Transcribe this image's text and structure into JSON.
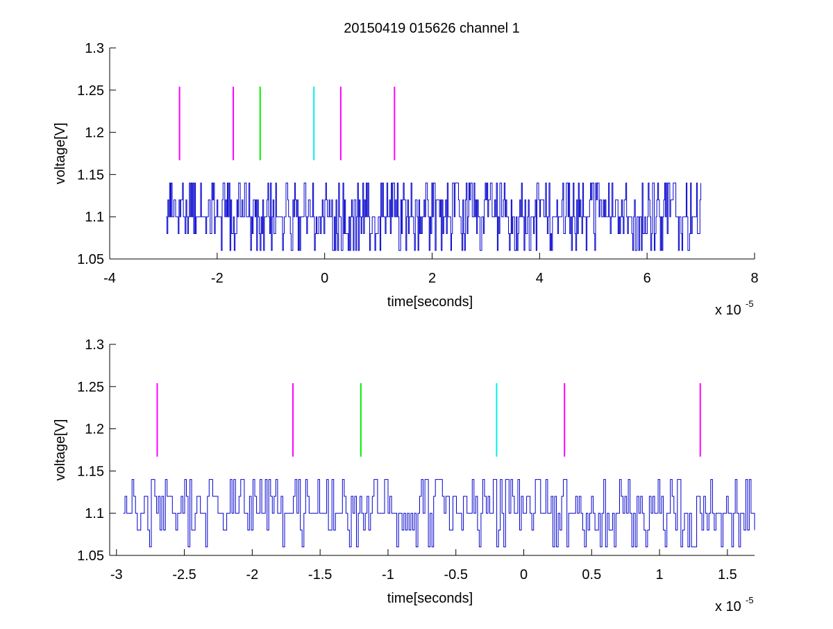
{
  "figure": {
    "title": "20150419 015626 channel 1"
  },
  "colors": {
    "signal": "#0000cc",
    "magenta": "#ff00ff",
    "green": "#00ee00",
    "cyan": "#00eeee",
    "axes": "#000000",
    "background": "#ffffff"
  },
  "chart_data": [
    {
      "type": "line",
      "title": "20150419 015626 channel 1",
      "xlabel": "time[seconds]",
      "ylabel": "voltage[V]",
      "x_exponent_label": "x 10",
      "x_exponent_power": "-5",
      "xlim": [
        -4,
        8
      ],
      "ylim": [
        1.05,
        1.3
      ],
      "xticks": [
        -4,
        -2,
        0,
        2,
        4,
        6,
        8
      ],
      "xtick_labels": [
        "-4",
        "-2",
        "0",
        "2",
        "4",
        "6",
        "8"
      ],
      "yticks": [
        1.05,
        1.1,
        1.15,
        1.2,
        1.25,
        1.3
      ],
      "ytick_labels": [
        "1.05",
        "1.1",
        "1.15",
        "1.2",
        "1.25",
        "1.3"
      ],
      "grid": false,
      "signal": {
        "x_range": [
          -2.95,
          7.0
        ],
        "levels": [
          1.06,
          1.08,
          1.1,
          1.12,
          1.14
        ],
        "baseline": 1.1,
        "note_color": "signal"
      },
      "markers": [
        {
          "x": -2.7,
          "y0": 1.167,
          "y1": 1.254,
          "color": "magenta"
        },
        {
          "x": -1.7,
          "y0": 1.167,
          "y1": 1.254,
          "color": "magenta"
        },
        {
          "x": -1.2,
          "y0": 1.167,
          "y1": 1.254,
          "color": "green"
        },
        {
          "x": -0.2,
          "y0": 1.167,
          "y1": 1.254,
          "color": "cyan"
        },
        {
          "x": 0.3,
          "y0": 1.167,
          "y1": 1.254,
          "color": "magenta"
        },
        {
          "x": 1.3,
          "y0": 1.167,
          "y1": 1.254,
          "color": "magenta"
        }
      ]
    },
    {
      "type": "line",
      "title": "",
      "xlabel": "time[seconds]",
      "ylabel": "voltage[V]",
      "x_exponent_label": "x 10",
      "x_exponent_power": "-5",
      "xlim": [
        -3.05,
        1.7
      ],
      "ylim": [
        1.05,
        1.3
      ],
      "xticks": [
        -3,
        -2.5,
        -2,
        -1.5,
        -1,
        -0.5,
        0,
        0.5,
        1,
        1.5
      ],
      "xtick_labels": [
        "-3",
        "-2.5",
        "-2",
        "-1.5",
        "-1",
        "-0.5",
        "0",
        "0.5",
        "1",
        "1.5"
      ],
      "yticks": [
        1.05,
        1.1,
        1.15,
        1.2,
        1.25,
        1.3
      ],
      "ytick_labels": [
        "1.05",
        "1.1",
        "1.15",
        "1.2",
        "1.25",
        "1.3"
      ],
      "grid": false,
      "signal": {
        "x_range": [
          -2.95,
          1.7
        ],
        "levels": [
          1.06,
          1.08,
          1.1,
          1.12,
          1.14
        ],
        "baseline": 1.1,
        "note_color": "signal"
      },
      "markers": [
        {
          "x": -2.7,
          "y0": 1.167,
          "y1": 1.254,
          "color": "magenta"
        },
        {
          "x": -1.7,
          "y0": 1.167,
          "y1": 1.254,
          "color": "magenta"
        },
        {
          "x": -1.2,
          "y0": 1.167,
          "y1": 1.254,
          "color": "green"
        },
        {
          "x": -0.2,
          "y0": 1.167,
          "y1": 1.254,
          "color": "cyan"
        },
        {
          "x": 0.3,
          "y0": 1.167,
          "y1": 1.254,
          "color": "magenta"
        },
        {
          "x": 1.3,
          "y0": 1.167,
          "y1": 1.254,
          "color": "magenta"
        }
      ]
    }
  ]
}
